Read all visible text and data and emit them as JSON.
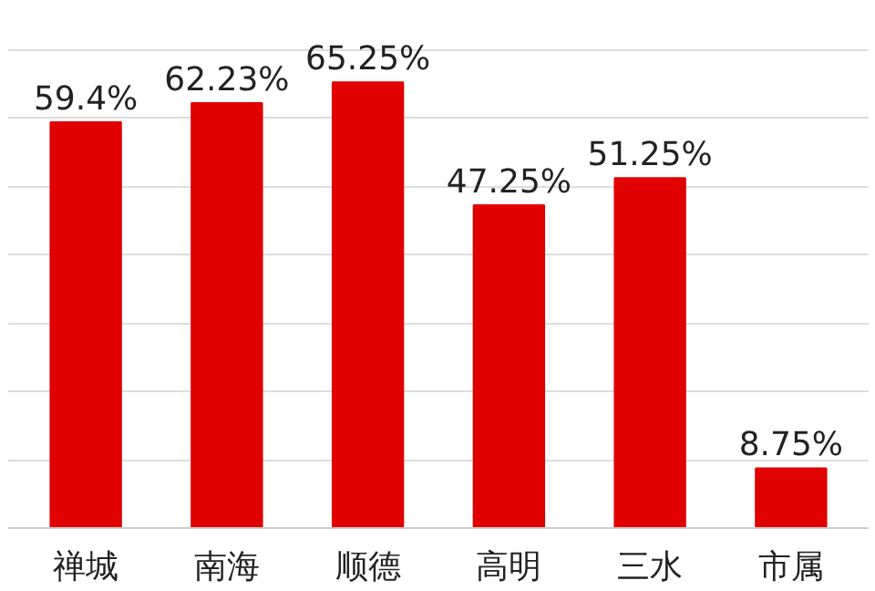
{
  "chart_data": {
    "type": "bar",
    "categories": [
      "禅城",
      "南海",
      "顺德",
      "高明",
      "三水",
      "市属"
    ],
    "values": [
      59.4,
      62.23,
      65.25,
      47.25,
      51.25,
      8.75
    ],
    "value_labels": [
      "59.4%",
      "62.23%",
      "65.25%",
      "47.25%",
      "51.25%",
      "8.75%"
    ],
    "color": "#e00000",
    "grid": "y",
    "tick_labels": "x"
  }
}
